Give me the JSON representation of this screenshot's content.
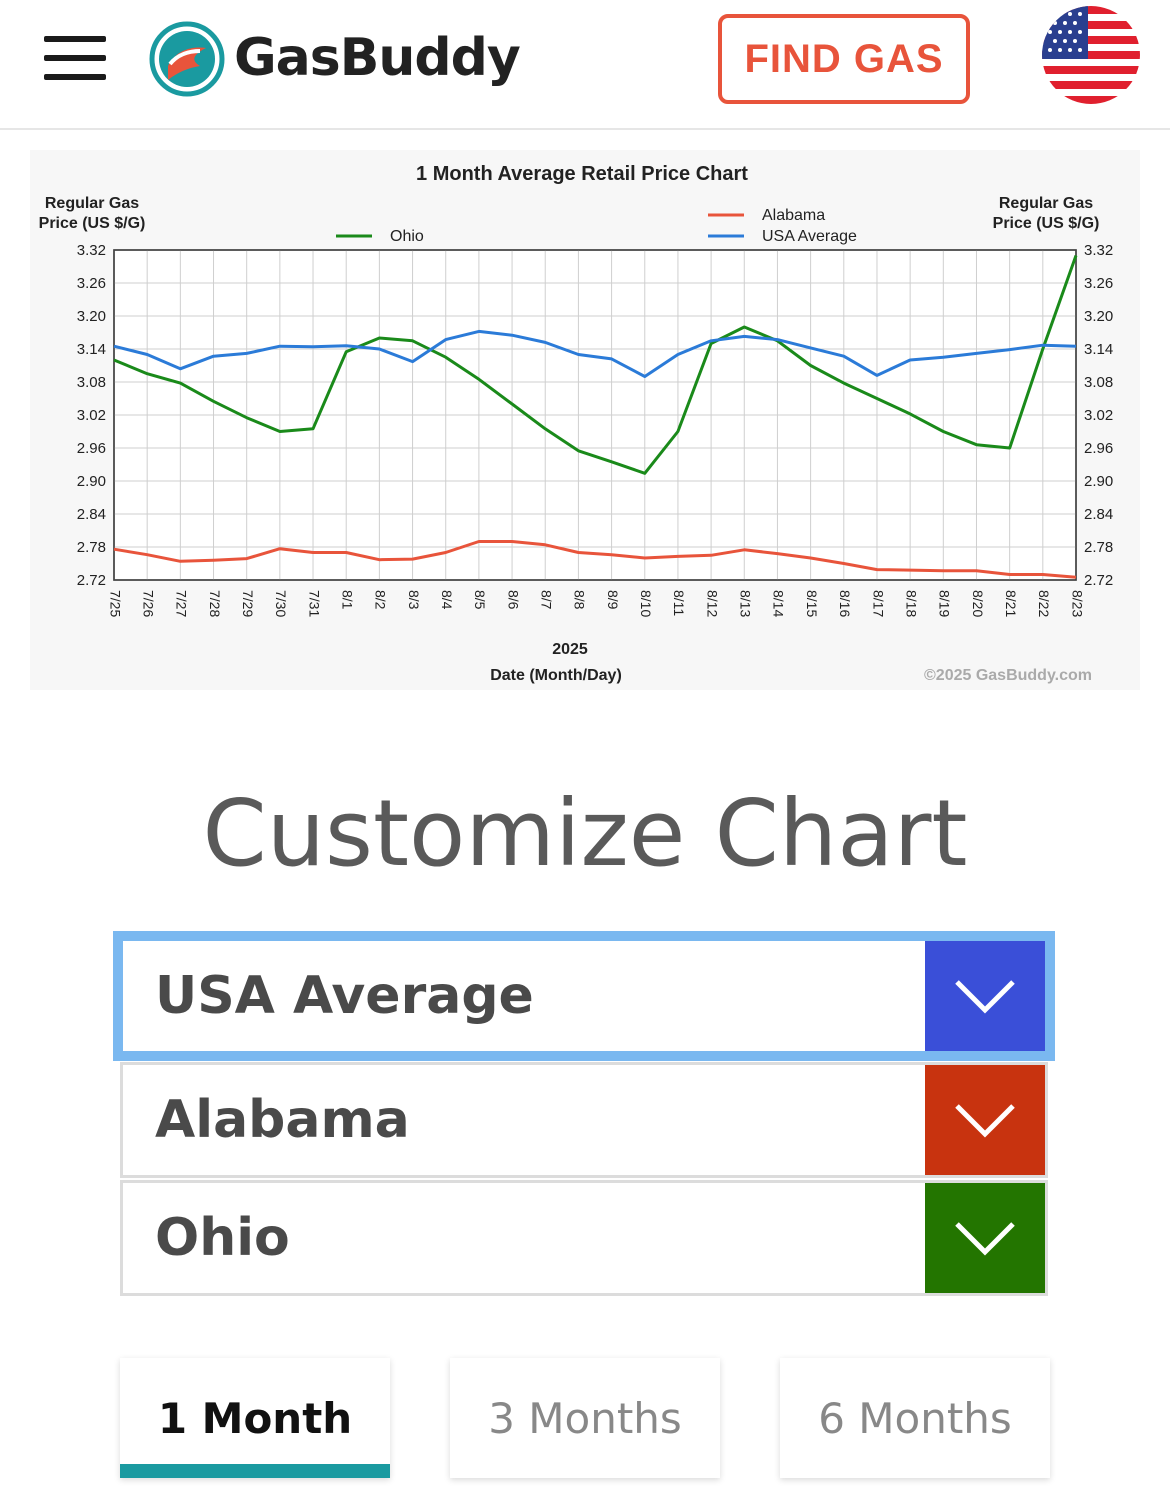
{
  "header": {
    "brand": "GasBuddy",
    "find_gas_label": "FIND GAS",
    "menu_icon": "hamburger-menu-icon",
    "flag_icon": "us-flag-icon"
  },
  "chart_data": {
    "type": "line",
    "title": "1 Month Average Retail Price Chart",
    "ylabel_left": "Regular Gas Price (US $/G)",
    "ylabel_right": "Regular Gas Price (US $/G)",
    "xlabel_year": "2025",
    "xlabel": "Date (Month/Day)",
    "copyright": "©2025 GasBuddy.com",
    "ylim": [
      2.72,
      3.32
    ],
    "yticks": [
      "3.32",
      "3.26",
      "3.20",
      "3.14",
      "3.08",
      "3.02",
      "2.96",
      "2.90",
      "2.84",
      "2.78",
      "2.72"
    ],
    "categories": [
      "7/25",
      "7/26",
      "7/27",
      "7/28",
      "7/29",
      "7/30",
      "7/31",
      "8/1",
      "8/2",
      "8/3",
      "8/4",
      "8/5",
      "8/6",
      "8/7",
      "8/8",
      "8/9",
      "8/10",
      "8/11",
      "8/12",
      "8/13",
      "8/14",
      "8/15",
      "8/16",
      "8/17",
      "8/18",
      "8/19",
      "8/20",
      "8/21",
      "8/22",
      "8/23"
    ],
    "grid": true,
    "series": [
      {
        "name": "Ohio",
        "color": "#1a8a1a",
        "values": [
          3.12,
          3.095,
          3.078,
          3.045,
          3.015,
          2.99,
          2.995,
          3.135,
          3.16,
          3.155,
          3.125,
          3.085,
          3.04,
          2.995,
          2.955,
          2.935,
          2.914,
          2.99,
          3.15,
          3.18,
          3.155,
          3.11,
          3.078,
          3.05,
          3.022,
          2.99,
          2.966,
          2.96,
          3.14,
          3.31
        ]
      },
      {
        "name": "Alabama",
        "color": "#e8543b",
        "values": [
          2.776,
          2.766,
          2.754,
          2.756,
          2.759,
          2.777,
          2.77,
          2.77,
          2.757,
          2.758,
          2.77,
          2.79,
          2.79,
          2.784,
          2.77,
          2.766,
          2.76,
          2.763,
          2.765,
          2.775,
          2.768,
          2.76,
          2.75,
          2.739,
          2.738,
          2.737,
          2.737,
          2.73,
          2.73,
          2.725
        ]
      },
      {
        "name": "USA Average",
        "color": "#2b7bd8",
        "values": [
          3.145,
          3.13,
          3.104,
          3.127,
          3.132,
          3.145,
          3.144,
          3.146,
          3.14,
          3.117,
          3.157,
          3.172,
          3.165,
          3.152,
          3.13,
          3.122,
          3.09,
          3.13,
          3.155,
          3.163,
          3.157,
          3.142,
          3.127,
          3.092,
          3.12,
          3.125,
          3.132,
          3.139,
          3.147,
          3.145
        ]
      }
    ]
  },
  "customize": {
    "title": "Customize Chart",
    "selects": [
      {
        "label": "USA Average",
        "color": "#3a4fd8"
      },
      {
        "label": "Alabama",
        "color": "#c8330f"
      },
      {
        "label": "Ohio",
        "color": "#237500"
      }
    ],
    "tabs": [
      "1 Month",
      "3 Months",
      "6 Months"
    ]
  }
}
